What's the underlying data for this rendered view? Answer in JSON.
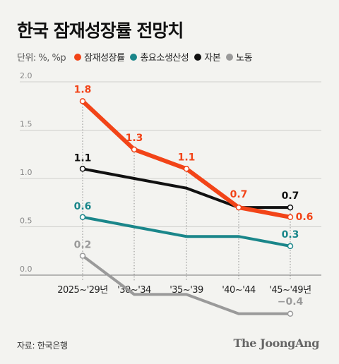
{
  "title": "한국 잠재성장률 전망치",
  "unit_label": "단위: %, %p",
  "source": "자료: 한국은행",
  "logo_text": "The JoongAng",
  "chart_data": {
    "type": "line",
    "categories": [
      "2025~'29년",
      "'30~'34",
      "'35~'39",
      "'40~'44",
      "'45~'49년"
    ],
    "ylim": [
      -0.4,
      2.0
    ],
    "yticks": [
      0.0,
      0.5,
      1.0,
      1.5,
      2.0
    ],
    "ytick_labels": [
      "0.0",
      "0.5",
      "1.0",
      "1.5",
      "2.0"
    ],
    "grid": true,
    "legend": "top-left",
    "series": [
      {
        "name": "잠재성장률",
        "color": "#f24418",
        "width": 6,
        "values": [
          1.8,
          1.3,
          1.1,
          0.7,
          0.6
        ],
        "labels": [
          "1.8",
          "1.3",
          "1.1",
          "0.7",
          "0.6"
        ]
      },
      {
        "name": "총요소생산성",
        "color": "#1a868a",
        "width": 4,
        "values": [
          0.6,
          0.5,
          0.4,
          0.4,
          0.3
        ],
        "labels": [
          "0.6",
          "",
          "",
          "",
          "0.3"
        ]
      },
      {
        "name": "자본",
        "color": "#111111",
        "width": 4,
        "values": [
          1.1,
          1.0,
          0.9,
          0.7,
          0.7
        ],
        "labels": [
          "1.1",
          "",
          "",
          "",
          "0.7"
        ]
      },
      {
        "name": "노동",
        "color": "#9a9a9a",
        "width": 4,
        "values": [
          0.2,
          -0.2,
          -0.2,
          -0.4,
          -0.4
        ],
        "labels": [
          "0.2",
          "",
          "",
          "",
          "−0.4"
        ]
      }
    ],
    "draw_order": [
      3,
      1,
      2,
      0
    ]
  }
}
